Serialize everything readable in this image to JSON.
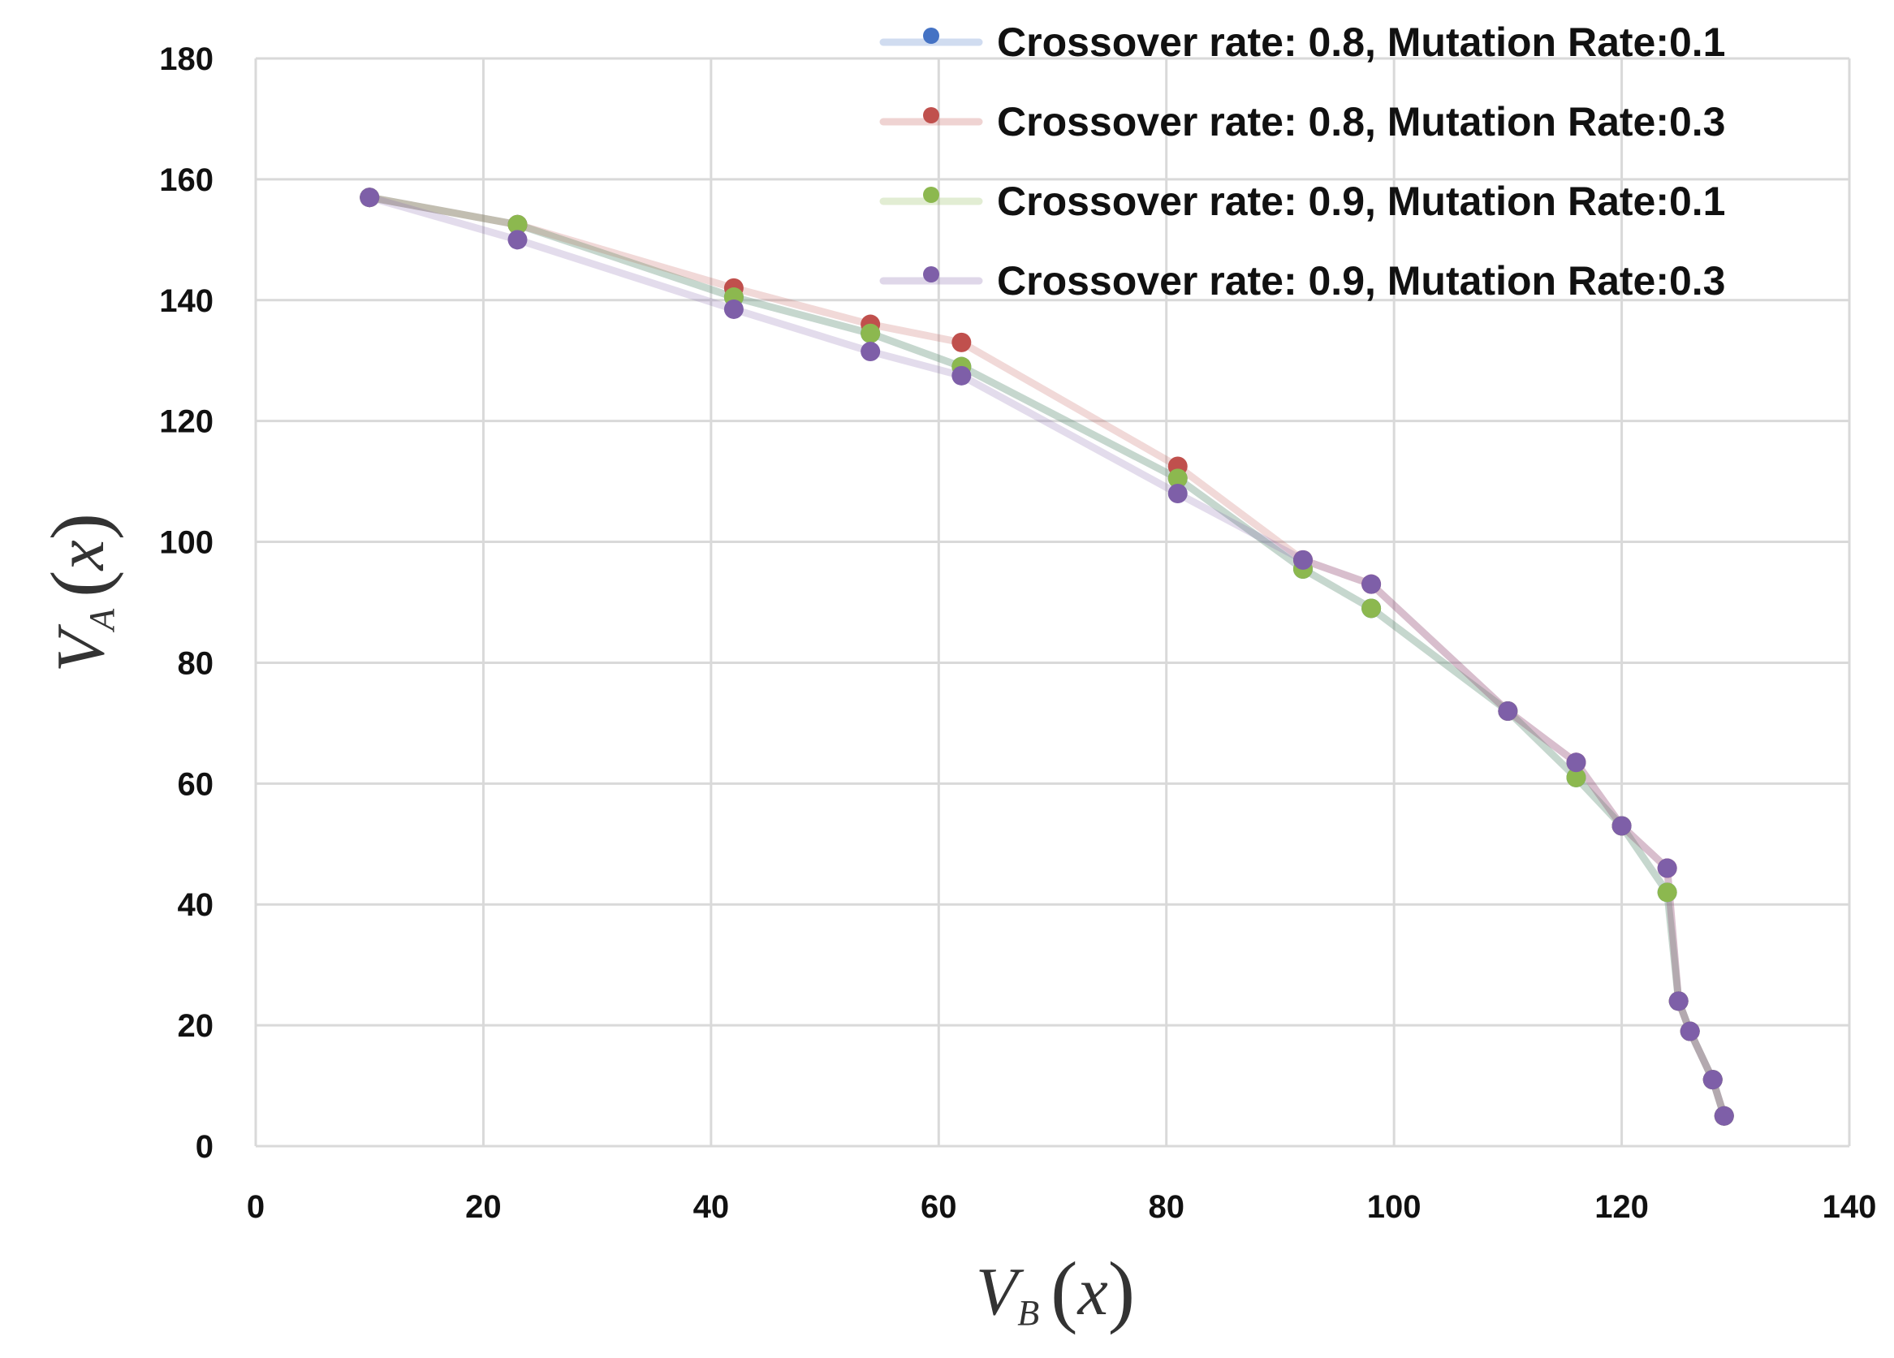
{
  "chart_data": {
    "type": "line",
    "title": "",
    "xlabel": {
      "var": "V",
      "sub": "B",
      "open": "(",
      "arg": "x",
      "close": ")"
    },
    "ylabel": {
      "var": "V",
      "sub": "A",
      "open": "(",
      "arg": "x",
      "close": ")"
    },
    "xlim": [
      0,
      140
    ],
    "ylim": [
      0,
      180
    ],
    "xticks": [
      0,
      20,
      40,
      60,
      80,
      100,
      120,
      140
    ],
    "yticks": [
      0,
      20,
      40,
      60,
      80,
      100,
      120,
      140,
      160,
      180
    ],
    "grid": true,
    "legend_position": "top-right",
    "series": [
      {
        "name": "Crossover rate: 0.8, Mutation Rate:0.1",
        "color": "#4472C4",
        "x": [
          10,
          23,
          42,
          54,
          62,
          81,
          92,
          98,
          110,
          116,
          120,
          124,
          125,
          126,
          128,
          129
        ],
        "y": [
          157,
          152.5,
          140.5,
          134.5,
          129,
          110.5,
          95.5,
          89,
          72,
          61,
          53,
          42,
          24,
          19,
          11,
          5
        ]
      },
      {
        "name": "Crossover rate: 0.8, Mutation Rate:0.3",
        "color": "#C0504D",
        "x": [
          10,
          23,
          42,
          54,
          62,
          81,
          92,
          98,
          110,
          116,
          120,
          124,
          125,
          126,
          128,
          129
        ],
        "y": [
          157,
          152.5,
          142,
          136,
          133,
          112.5,
          97,
          93,
          72,
          63.5,
          53,
          46,
          24,
          19,
          11,
          5
        ]
      },
      {
        "name": "Crossover rate: 0.9, Mutation Rate:0.1",
        "color": "#8CB84F",
        "x": [
          10,
          23,
          42,
          54,
          62,
          81,
          92,
          98,
          110,
          116,
          120,
          124,
          125,
          126,
          128,
          129
        ],
        "y": [
          157,
          152.5,
          140.5,
          134.5,
          129,
          110.5,
          95.5,
          89,
          72,
          61,
          53,
          42,
          24,
          19,
          11,
          5
        ]
      },
      {
        "name": "Crossover rate: 0.9, Mutation Rate:0.3",
        "color": "#7E5FA8",
        "x": [
          10,
          23,
          42,
          54,
          62,
          81,
          92,
          98,
          110,
          116,
          120,
          124,
          125,
          126,
          128,
          129
        ],
        "y": [
          157,
          150,
          138.5,
          131.5,
          127.5,
          108,
          97,
          93,
          72,
          63.5,
          53,
          46,
          24,
          19,
          11,
          5
        ]
      }
    ]
  }
}
